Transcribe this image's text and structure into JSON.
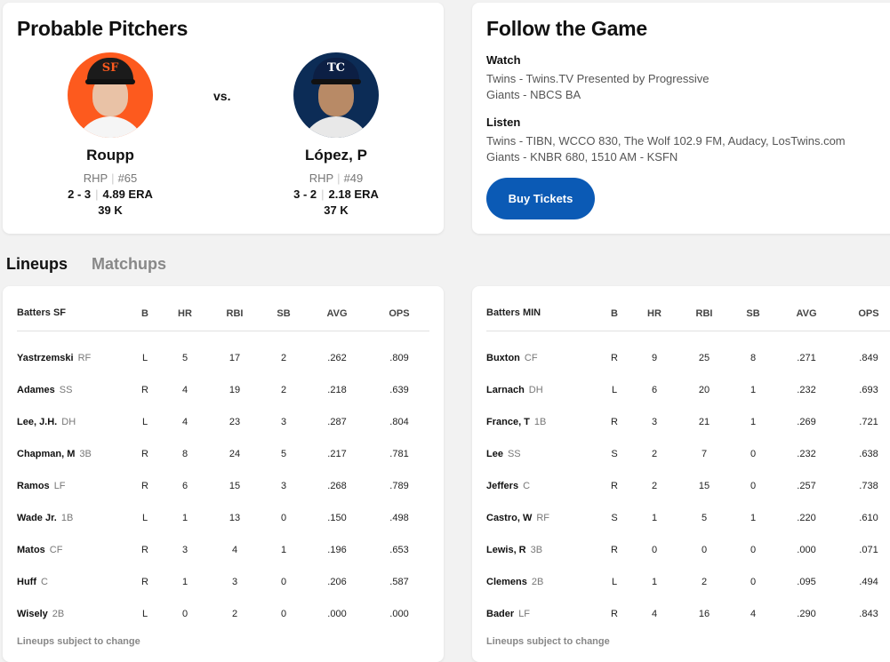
{
  "probable_pitchers": {
    "title": "Probable Pitchers",
    "vs_label": "vs.",
    "away": {
      "name": "Roupp",
      "throws": "RHP",
      "number": "#65",
      "record": "2 - 3",
      "era": "4.89 ERA",
      "k": "39 K",
      "cap_logo": "SF"
    },
    "home": {
      "name": "López, P",
      "throws": "RHP",
      "number": "#49",
      "record": "3 - 2",
      "era": "2.18 ERA",
      "k": "37 K",
      "cap_logo": "TC"
    }
  },
  "follow": {
    "title": "Follow the Game",
    "watch_label": "Watch",
    "watch_lines": [
      "Twins - Twins.TV Presented by Progressive",
      "Giants - NBCS BA"
    ],
    "listen_label": "Listen",
    "listen_lines": [
      "Twins - TIBN, WCCO 830, The Wolf 102.9 FM, Audacy, LosTwins.com",
      "Giants - KNBR 680, 1510 AM - KSFN"
    ],
    "buy_label": "Buy Tickets",
    "button_color": "#0b5ab5"
  },
  "tabs": [
    {
      "label": "Lineups",
      "active": true
    },
    {
      "label": "Matchups",
      "active": false
    }
  ],
  "lineups": {
    "columns": [
      "B",
      "HR",
      "RBI",
      "SB",
      "AVG",
      "OPS"
    ],
    "footer": "Lineups subject to change",
    "sf": {
      "header": "Batters SF",
      "rows": [
        {
          "name": "Yastrzemski",
          "pos": "RF",
          "b": "L",
          "hr": "5",
          "rbi": "17",
          "sb": "2",
          "avg": ".262",
          "ops": ".809"
        },
        {
          "name": "Adames",
          "pos": "SS",
          "b": "R",
          "hr": "4",
          "rbi": "19",
          "sb": "2",
          "avg": ".218",
          "ops": ".639"
        },
        {
          "name": "Lee, J.H.",
          "pos": "DH",
          "b": "L",
          "hr": "4",
          "rbi": "23",
          "sb": "3",
          "avg": ".287",
          "ops": ".804"
        },
        {
          "name": "Chapman, M",
          "pos": "3B",
          "b": "R",
          "hr": "8",
          "rbi": "24",
          "sb": "5",
          "avg": ".217",
          "ops": ".781"
        },
        {
          "name": "Ramos",
          "pos": "LF",
          "b": "R",
          "hr": "6",
          "rbi": "15",
          "sb": "3",
          "avg": ".268",
          "ops": ".789"
        },
        {
          "name": "Wade Jr.",
          "pos": "1B",
          "b": "L",
          "hr": "1",
          "rbi": "13",
          "sb": "0",
          "avg": ".150",
          "ops": ".498"
        },
        {
          "name": "Matos",
          "pos": "CF",
          "b": "R",
          "hr": "3",
          "rbi": "4",
          "sb": "1",
          "avg": ".196",
          "ops": ".653"
        },
        {
          "name": "Huff",
          "pos": "C",
          "b": "R",
          "hr": "1",
          "rbi": "3",
          "sb": "0",
          "avg": ".206",
          "ops": ".587"
        },
        {
          "name": "Wisely",
          "pos": "2B",
          "b": "L",
          "hr": "0",
          "rbi": "2",
          "sb": "0",
          "avg": ".000",
          "ops": ".000"
        }
      ]
    },
    "min": {
      "header": "Batters MIN",
      "rows": [
        {
          "name": "Buxton",
          "pos": "CF",
          "b": "R",
          "hr": "9",
          "rbi": "25",
          "sb": "8",
          "avg": ".271",
          "ops": ".849"
        },
        {
          "name": "Larnach",
          "pos": "DH",
          "b": "L",
          "hr": "6",
          "rbi": "20",
          "sb": "1",
          "avg": ".232",
          "ops": ".693"
        },
        {
          "name": "France, T",
          "pos": "1B",
          "b": "R",
          "hr": "3",
          "rbi": "21",
          "sb": "1",
          "avg": ".269",
          "ops": ".721"
        },
        {
          "name": "Lee",
          "pos": "SS",
          "b": "S",
          "hr": "2",
          "rbi": "7",
          "sb": "0",
          "avg": ".232",
          "ops": ".638"
        },
        {
          "name": "Jeffers",
          "pos": "C",
          "b": "R",
          "hr": "2",
          "rbi": "15",
          "sb": "0",
          "avg": ".257",
          "ops": ".738"
        },
        {
          "name": "Castro, W",
          "pos": "RF",
          "b": "S",
          "hr": "1",
          "rbi": "5",
          "sb": "1",
          "avg": ".220",
          "ops": ".610"
        },
        {
          "name": "Lewis, R",
          "pos": "3B",
          "b": "R",
          "hr": "0",
          "rbi": "0",
          "sb": "0",
          "avg": ".000",
          "ops": ".071"
        },
        {
          "name": "Clemens",
          "pos": "2B",
          "b": "L",
          "hr": "1",
          "rbi": "2",
          "sb": "0",
          "avg": ".095",
          "ops": ".494"
        },
        {
          "name": "Bader",
          "pos": "LF",
          "b": "R",
          "hr": "4",
          "rbi": "16",
          "sb": "4",
          "avg": ".290",
          "ops": ".843"
        }
      ]
    }
  }
}
